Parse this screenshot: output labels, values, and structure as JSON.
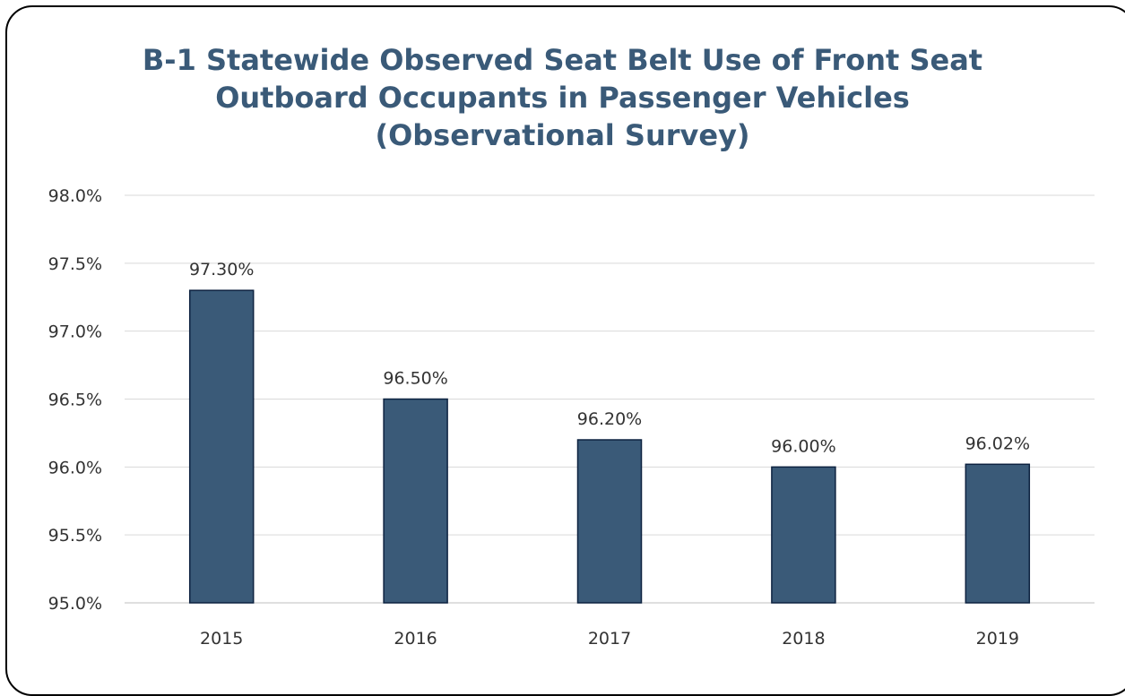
{
  "chart_data": {
    "type": "bar",
    "title": [
      "B-1 Statewide Observed Seat Belt Use of Front Seat",
      "Outboard Occupants in Passenger Vehicles",
      "(Observational Survey)"
    ],
    "categories": [
      "2015",
      "2016",
      "2017",
      "2018",
      "2019"
    ],
    "values": [
      97.3,
      96.5,
      96.2,
      96.0,
      96.02
    ],
    "data_labels": [
      "97.30%",
      "96.50%",
      "96.20%",
      "96.00%",
      "96.02%"
    ],
    "ylim": [
      95.0,
      98.0
    ],
    "yticks": [
      95.0,
      95.5,
      96.0,
      96.5,
      97.0,
      97.5,
      98.0
    ],
    "ytick_labels": [
      "95.0%",
      "95.5%",
      "96.0%",
      "96.5%",
      "97.0%",
      "97.5%",
      "98.0%"
    ],
    "xlabel": "",
    "ylabel": "",
    "grid": true,
    "legend": "none",
    "colors": {
      "bar": "#3a5a78",
      "bar_border": "#0d2240",
      "title": "#3a5a78",
      "grid": "#d9d9d9"
    }
  }
}
